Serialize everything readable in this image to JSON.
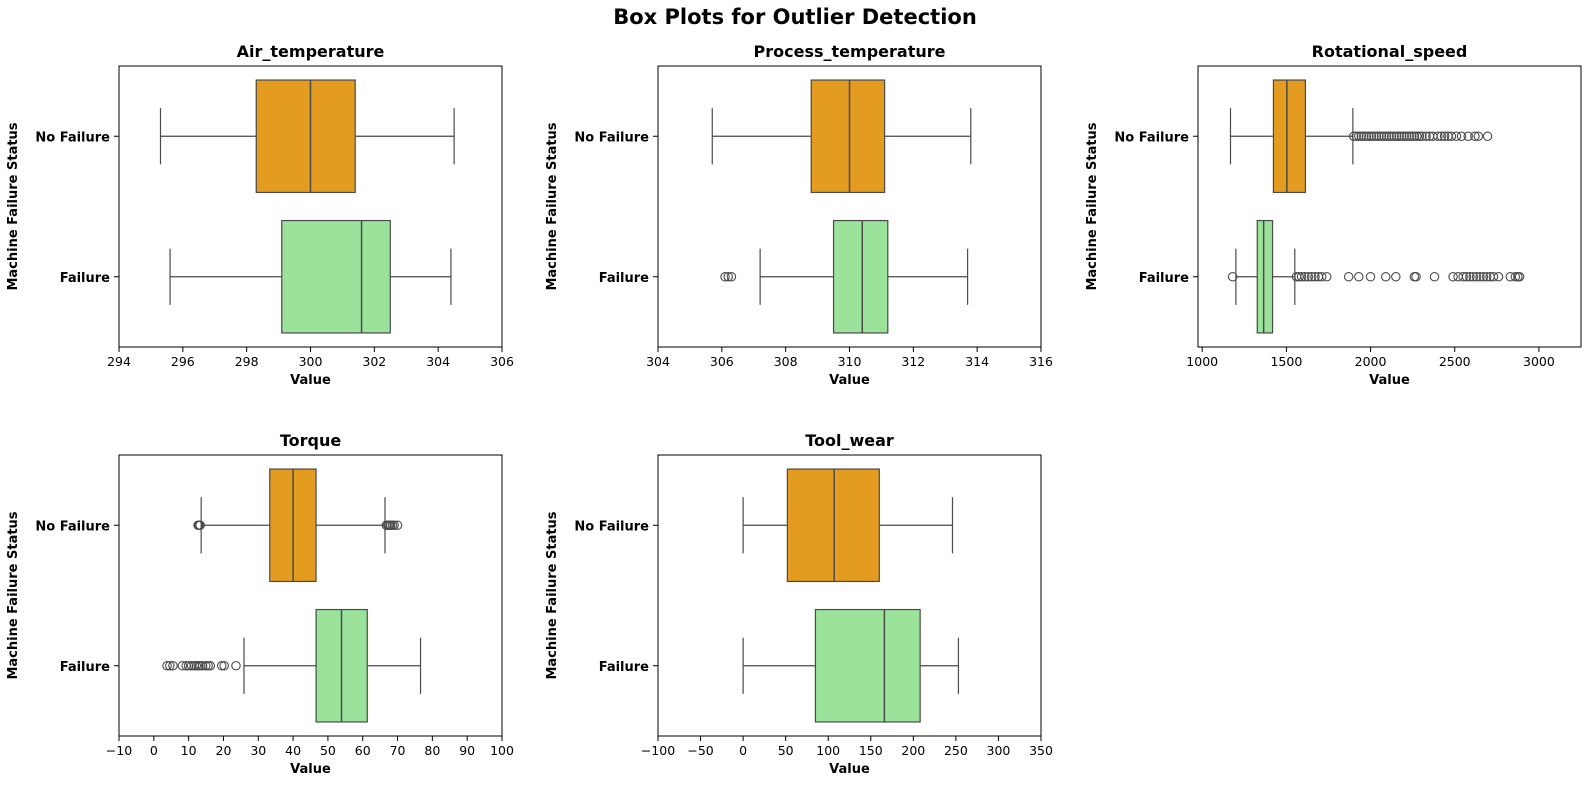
{
  "title": "Box Plots for Outlier Detection",
  "colors": {
    "no_failure": "#E39C1F",
    "failure": "#9BE39B",
    "line": "#4a4a4a",
    "axis": "#000000"
  },
  "chart_data": [
    {
      "type": "box",
      "title": "Air_temperature",
      "xlabel": "Value",
      "ylabel": "Machine Failure Status",
      "xlim": [
        294,
        306
      ],
      "xticks": [
        294,
        296,
        298,
        300,
        302,
        304,
        306
      ],
      "categories": [
        "No Failure",
        "Failure"
      ],
      "boxes": [
        {
          "category": "No Failure",
          "whisker_low": 295.3,
          "q1": 298.3,
          "median": 300.0,
          "q3": 301.4,
          "whisker_high": 304.5,
          "outliers": []
        },
        {
          "category": "Failure",
          "whisker_low": 295.6,
          "q1": 299.1,
          "median": 301.6,
          "q3": 302.5,
          "whisker_high": 304.4,
          "outliers": []
        }
      ]
    },
    {
      "type": "box",
      "title": "Process_temperature",
      "xlabel": "Value",
      "ylabel": "Machine Failure Status",
      "xlim": [
        304,
        316
      ],
      "xticks": [
        304,
        306,
        308,
        310,
        312,
        314,
        316
      ],
      "categories": [
        "No Failure",
        "Failure"
      ],
      "boxes": [
        {
          "category": "No Failure",
          "whisker_low": 305.7,
          "q1": 308.8,
          "median": 310.0,
          "q3": 311.1,
          "whisker_high": 313.8,
          "outliers": []
        },
        {
          "category": "Failure",
          "whisker_low": 307.2,
          "q1": 309.5,
          "median": 310.4,
          "q3": 311.2,
          "whisker_high": 313.7,
          "outliers": [
            306.1,
            306.2,
            306.3
          ]
        }
      ]
    },
    {
      "type": "box",
      "title": "Rotational_speed",
      "xlabel": "Value",
      "ylabel": "Machine Failure Status",
      "xlim": [
        975,
        3250
      ],
      "xticks": [
        1000,
        1500,
        2000,
        2500,
        3000
      ],
      "categories": [
        "No Failure",
        "Failure"
      ],
      "boxes": [
        {
          "category": "No Failure",
          "whisker_low": 1168,
          "q1": 1423,
          "median": 1503,
          "q3": 1613,
          "whisker_high": 1895,
          "outliers": [
            1900,
            1915,
            1930,
            1945,
            1960,
            1975,
            1990,
            2005,
            2020,
            2035,
            2050,
            2065,
            2080,
            2095,
            2110,
            2125,
            2140,
            2155,
            2170,
            2185,
            2200,
            2215,
            2230,
            2245,
            2260,
            2275,
            2290,
            2305,
            2330,
            2350,
            2370,
            2400,
            2420,
            2440,
            2460,
            2480,
            2510,
            2540,
            2580,
            2620,
            2640,
            2695
          ]
        },
        {
          "category": "Failure",
          "whisker_low": 1200,
          "q1": 1327,
          "median": 1365,
          "q3": 1418,
          "whisker_high": 1550,
          "outliers": [
            1181,
            1560,
            1575,
            1590,
            1610,
            1630,
            1650,
            1670,
            1690,
            1710,
            1740,
            1870,
            1930,
            2000,
            2090,
            2150,
            2260,
            2270,
            2380,
            2490,
            2520,
            2550,
            2570,
            2590,
            2610,
            2630,
            2650,
            2670,
            2690,
            2710,
            2730,
            2760,
            2830,
            2860,
            2875,
            2885
          ]
        }
      ]
    },
    {
      "type": "box",
      "title": "Torque",
      "xlabel": "Value",
      "ylabel": "Machine Failure Status",
      "xlim": [
        -10,
        100
      ],
      "xticks": [
        -10,
        0,
        10,
        20,
        30,
        40,
        50,
        60,
        70,
        80,
        90,
        100
      ],
      "categories": [
        "No Failure",
        "Failure"
      ],
      "boxes": [
        {
          "category": "No Failure",
          "whisker_low": 13.6,
          "q1": 33.3,
          "median": 40.0,
          "q3": 46.6,
          "whisker_high": 66.4,
          "outliers": [
            12.7,
            13.0,
            13.3,
            66.8,
            67.2,
            67.6,
            68.0,
            68.5,
            69.0,
            70.0
          ]
        },
        {
          "category": "Failure",
          "whisker_low": 25.9,
          "q1": 46.6,
          "median": 53.9,
          "q3": 61.3,
          "whisker_high": 76.6,
          "outliers": [
            3.8,
            4.6,
            5.5,
            8.2,
            9.3,
            10.0,
            10.8,
            11.6,
            12.2,
            12.8,
            13.3,
            14.0,
            14.9,
            15.6,
            16.2,
            19.5,
            20.2,
            23.6
          ]
        }
      ]
    },
    {
      "type": "box",
      "title": "Tool_wear",
      "xlabel": "Value",
      "ylabel": "Machine Failure Status",
      "xlim": [
        -100,
        350
      ],
      "xticks": [
        -100,
        -50,
        0,
        50,
        100,
        150,
        200,
        250,
        300,
        350
      ],
      "categories": [
        "No Failure",
        "Failure"
      ],
      "boxes": [
        {
          "category": "No Failure",
          "whisker_low": 0,
          "q1": 52,
          "median": 107,
          "q3": 160,
          "whisker_high": 246,
          "outliers": []
        },
        {
          "category": "Failure",
          "whisker_low": 0,
          "q1": 85,
          "median": 166,
          "q3": 208,
          "whisker_high": 253,
          "outliers": []
        }
      ]
    }
  ]
}
